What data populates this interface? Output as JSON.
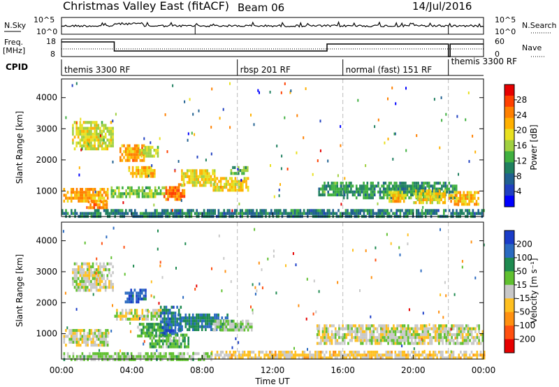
{
  "header": {
    "title": "Christmas Valley East (fitACF)",
    "beam": "Beam 06",
    "date": "14/Jul/2016"
  },
  "panels": {
    "nsky": {
      "label": "N.Sky",
      "right_label": "N.Search",
      "left_ticks": [
        "10^5",
        "10^0"
      ],
      "right_ticks": [
        "10^5",
        "10^0"
      ]
    },
    "freq": {
      "label_line1": "Freq.",
      "label_line2": "[MHz]",
      "right_label": "Nave",
      "left_ticks": [
        "18",
        "8"
      ],
      "right_ticks": [
        "60",
        "0"
      ]
    },
    "cpid": {
      "label": "CPID",
      "segments": [
        {
          "name": "themis 3300 RF",
          "start": 0,
          "end": 10
        },
        {
          "name": "rbsp 201 RF",
          "start": 10,
          "end": 16
        },
        {
          "name": "normal (fast) 151 RF",
          "start": 16,
          "end": 22
        },
        {
          "name": "themis 3300 RF",
          "start": 22,
          "end": 24
        }
      ]
    }
  },
  "colorbars": {
    "power": {
      "label": "Power [dB]",
      "ticks": [
        "28",
        "24",
        "20",
        "16",
        "12",
        "8",
        "4"
      ],
      "colors": [
        "#e60000",
        "#ff4000",
        "#ff8000",
        "#ffb000",
        "#e8e020",
        "#a0d040",
        "#40b040",
        "#208060",
        "#206090",
        "#2040c0",
        "#0000ff"
      ]
    },
    "velocity": {
      "label": "Velocity [m s⁻¹]",
      "ticks": [
        "200",
        "100",
        "50",
        "15",
        "-15",
        "-50",
        "-100",
        "-200"
      ],
      "colors": [
        "#1a3cc8",
        "#2a6ac0",
        "#1e8a50",
        "#60c030",
        "#c8c8c8",
        "#ffc020",
        "#ff9010",
        "#ff5010",
        "#e60000"
      ]
    }
  },
  "axes": {
    "ylabel": "Slant Range [km]",
    "xlabel": "Time UT",
    "xticks": [
      "00:00",
      "04:00",
      "08:00",
      "12:00",
      "16:00",
      "20:00",
      "00:00"
    ],
    "yticks": [
      "1000",
      "2000",
      "3000",
      "4000"
    ]
  },
  "chart_data": [
    {
      "type": "heatmap",
      "title": "Christmas Valley East (fitACF) Beam 06 14/Jul/2016",
      "ylabel": "Slant Range [km]",
      "colorbar_label": "Power [dB]",
      "xlim_hours": [
        0,
        24
      ],
      "ylim_km": [
        180,
        4600
      ],
      "clim": [
        0,
        30
      ],
      "blobs": [
        {
          "t0": 0.1,
          "t1": 2.6,
          "r0": 700,
          "r1": 1100,
          "value": 22
        },
        {
          "t0": 1.5,
          "t1": 2.6,
          "r0": 450,
          "r1": 700,
          "value": 24
        },
        {
          "t0": 0.6,
          "t1": 2.9,
          "r0": 2400,
          "r1": 3250,
          "value": 17
        },
        {
          "t0": 3.3,
          "t1": 4.7,
          "r0": 1950,
          "r1": 2500,
          "value": 22
        },
        {
          "t0": 3.8,
          "t1": 5.3,
          "r0": 1500,
          "r1": 1800,
          "value": 20
        },
        {
          "t0": 2.8,
          "t1": 5.8,
          "r0": 850,
          "r1": 1150,
          "value": 14
        },
        {
          "t0": 4.4,
          "t1": 5.5,
          "r0": 2150,
          "r1": 2450,
          "value": 16
        },
        {
          "t0": 5.8,
          "t1": 7.0,
          "r0": 700,
          "r1": 1250,
          "value": 25
        },
        {
          "t0": 6.8,
          "t1": 8.7,
          "r0": 1200,
          "r1": 1700,
          "value": 18
        },
        {
          "t0": 8.6,
          "t1": 10.6,
          "r0": 1050,
          "r1": 1450,
          "value": 19
        },
        {
          "t0": 9.6,
          "t1": 10.6,
          "r0": 1550,
          "r1": 1800,
          "value": 12
        },
        {
          "t0": 14.6,
          "t1": 16.4,
          "r0": 900,
          "r1": 1300,
          "value": 10
        },
        {
          "t0": 16.0,
          "t1": 22.5,
          "r0": 800,
          "r1": 1300,
          "value": 10
        },
        {
          "t0": 18.6,
          "t1": 19.6,
          "r0": 650,
          "r1": 1000,
          "value": 20
        },
        {
          "t0": 20.0,
          "t1": 21.8,
          "r0": 650,
          "r1": 1050,
          "value": 19
        },
        {
          "t0": 22.0,
          "t1": 23.7,
          "r0": 600,
          "r1": 1000,
          "value": 21
        },
        {
          "t0": 0.0,
          "t1": 24.0,
          "r0": 200,
          "r1": 420,
          "value": 8
        }
      ]
    },
    {
      "type": "heatmap",
      "ylabel": "Slant Range [km]",
      "xlabel": "Time UT",
      "colorbar_label": "Velocity [m s⁻¹]",
      "xlim_hours": [
        0,
        24
      ],
      "ylim_km": [
        180,
        4600
      ],
      "clim": [
        -250,
        250
      ],
      "blobs": [
        {
          "t0": 0.1,
          "t1": 2.6,
          "r0": 650,
          "r1": 1150,
          "value": 0
        },
        {
          "t0": 0.6,
          "t1": 2.9,
          "r0": 2400,
          "r1": 3300,
          "value": 0
        },
        {
          "t0": 3.6,
          "t1": 4.8,
          "r0": 2000,
          "r1": 2450,
          "value": 200
        },
        {
          "t0": 3.0,
          "t1": 5.6,
          "r0": 1450,
          "r1": 1800,
          "value": 0
        },
        {
          "t0": 4.3,
          "t1": 6.2,
          "r0": 950,
          "r1": 1350,
          "value": 80
        },
        {
          "t0": 5.6,
          "t1": 6.8,
          "r0": 1000,
          "r1": 1900,
          "value": 180
        },
        {
          "t0": 6.6,
          "t1": 9.4,
          "r0": 1150,
          "r1": 1650,
          "value": 160
        },
        {
          "t0": 8.6,
          "t1": 10.8,
          "r0": 1150,
          "r1": 1450,
          "value": 50
        },
        {
          "t0": 5.0,
          "t1": 7.2,
          "r0": 600,
          "r1": 1000,
          "value": 60
        },
        {
          "t0": 14.5,
          "t1": 24.0,
          "r0": 700,
          "r1": 1300,
          "value": 0
        },
        {
          "t0": 8.5,
          "t1": 24.0,
          "r0": 200,
          "r1": 450,
          "value": -40
        },
        {
          "t0": 0.0,
          "t1": 8.5,
          "r0": 200,
          "r1": 400,
          "value": 40
        }
      ]
    }
  ]
}
